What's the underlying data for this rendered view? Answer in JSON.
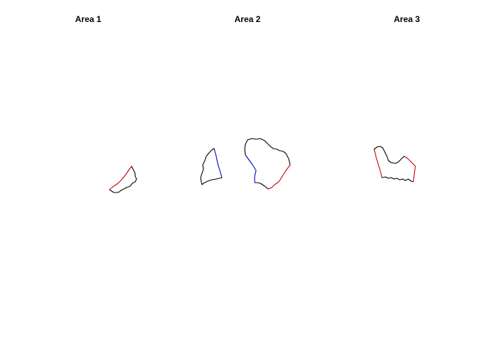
{
  "figure": {
    "panels": [
      {
        "title": "Area 1",
        "shapes": [
          {
            "name": "area-1-polygon",
            "outline_color": "#000000",
            "highlight_color": "#cc0000",
            "highlighted_edges": "lower-left boundary"
          }
        ]
      },
      {
        "title": "Area 2",
        "shapes": [
          {
            "name": "area-2-left-polygon",
            "outline_color": "#000000",
            "highlight_color": "#0000cc",
            "highlighted_edges": "right boundary"
          },
          {
            "name": "area-2-right-polygon",
            "outline_color": "#000000",
            "highlight_colors": [
              "#0000cc",
              "#cc0000"
            ],
            "highlighted_edges": "left boundary (blue), lower-right boundary (red)"
          }
        ]
      },
      {
        "title": "Area 3",
        "shapes": [
          {
            "name": "area-3-polygon",
            "outline_color": "#000000",
            "highlight_color": "#cc0000",
            "highlighted_edges": "left and right sides"
          }
        ]
      }
    ]
  }
}
